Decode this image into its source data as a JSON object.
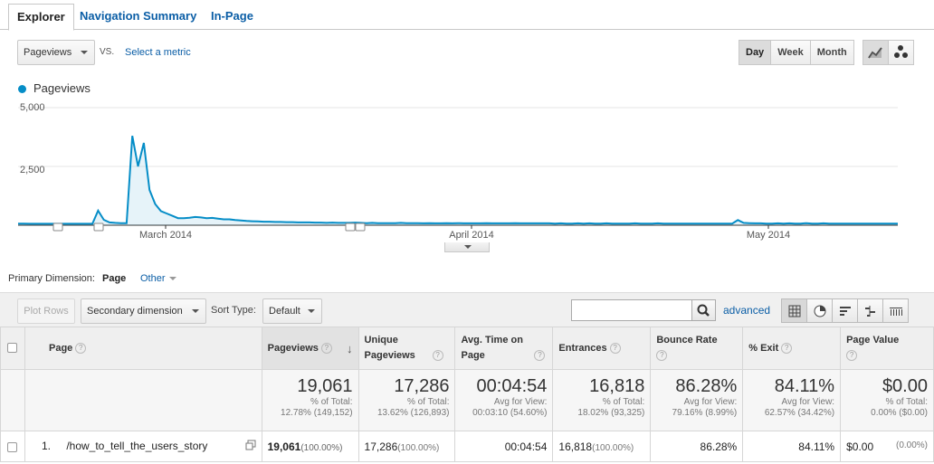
{
  "tabs": [
    {
      "label": "Explorer",
      "active": true
    },
    {
      "label": "Navigation Summary",
      "active": false
    },
    {
      "label": "In-Page",
      "active": false
    }
  ],
  "metric_controls": {
    "metric": "Pageviews",
    "vs_label": "VS.",
    "select_metric": "Select a metric",
    "periods": [
      "Day",
      "Week",
      "Month"
    ],
    "active_period": "Day",
    "chart_modes": [
      "line-chart-icon",
      "motion-chart-icon"
    ]
  },
  "chart_data": {
    "type": "line",
    "series": [
      {
        "name": "Pageviews",
        "color": "#058dc7",
        "values": [
          70,
          70,
          60,
          60,
          60,
          60,
          60,
          60,
          60,
          60,
          60,
          60,
          60,
          60,
          620,
          230,
          120,
          100,
          90,
          90,
          3800,
          2500,
          3500,
          1500,
          900,
          600,
          500,
          400,
          300,
          300,
          320,
          350,
          330,
          300,
          310,
          280,
          250,
          250,
          220,
          200,
          180,
          170,
          160,
          150,
          150,
          140,
          140,
          130,
          130,
          120,
          120,
          120,
          110,
          110,
          100,
          110,
          100,
          100,
          100,
          110,
          100,
          90,
          100,
          90,
          90,
          90,
          90,
          100,
          90,
          90,
          90,
          80,
          90,
          80,
          80,
          90,
          80,
          90,
          80,
          80,
          80,
          80,
          90,
          80,
          80,
          80,
          80,
          90,
          80,
          80,
          80,
          80,
          80,
          80,
          70,
          80,
          70,
          70,
          80,
          70,
          80,
          70,
          70,
          80,
          70,
          70,
          70,
          70,
          80,
          70,
          70,
          70,
          80,
          70,
          70,
          70,
          70,
          70,
          70,
          70,
          70,
          70,
          70,
          70,
          70,
          70,
          220,
          100,
          90,
          80,
          80,
          70,
          70,
          80,
          70,
          80,
          70,
          70,
          90,
          70,
          70,
          80,
          70,
          70,
          70,
          70,
          70,
          70,
          70,
          70,
          70,
          70,
          70,
          70,
          70
        ]
      }
    ],
    "yticks": [
      "5,000",
      "2,500"
    ],
    "ylim": [
      0,
      5000
    ],
    "xticks": [
      "March 2014",
      "April 2014",
      "May 2014"
    ],
    "legend": "top-left",
    "annotations_count": 4
  },
  "primary_dimension": {
    "label": "Primary Dimension:",
    "selected": "Page",
    "other": "Other"
  },
  "toolbar": {
    "plot_rows": "Plot Rows",
    "secondary_dimension": "Secondary dimension",
    "sort_type_label": "Sort Type:",
    "sort_type": "Default",
    "advanced": "advanced"
  },
  "table": {
    "headers": {
      "page": "Page",
      "pageviews": "Pageviews",
      "unique_pageviews": "Unique Pageviews",
      "avg_time": "Avg. Time on Page",
      "entrances": "Entrances",
      "bounce_rate": "Bounce Rate",
      "exit": "% Exit",
      "page_value": "Page Value"
    },
    "totals": {
      "pageviews": {
        "value": "19,061",
        "line1": "% of Total:",
        "line2": "12.78% (149,152)"
      },
      "unique_pageviews": {
        "value": "17,286",
        "line1": "% of Total:",
        "line2": "13.62% (126,893)"
      },
      "avg_time": {
        "value": "00:04:54",
        "line1": "Avg for View:",
        "line2": "00:03:10 (54.60%)"
      },
      "entrances": {
        "value": "16,818",
        "line1": "% of Total:",
        "line2": "18.02% (93,325)"
      },
      "bounce_rate": {
        "value": "86.28%",
        "line1": "Avg for View:",
        "line2": "79.16% (8.99%)"
      },
      "exit": {
        "value": "84.11%",
        "line1": "Avg for View:",
        "line2": "62.57% (34.42%)"
      },
      "page_value": {
        "value": "$0.00",
        "line1": "% of Total:",
        "line2": "0.00% ($0.00)"
      }
    },
    "rows": [
      {
        "index": "1.",
        "page": "/how_to_tell_the_users_story",
        "pageviews": "19,061",
        "pageviews_pct": "(100.00%)",
        "unique_pageviews": "17,286",
        "unique_pct": "(100.00%)",
        "avg_time": "00:04:54",
        "entrances": "16,818",
        "entrances_pct": "(100.00%)",
        "bounce_rate": "86.28%",
        "exit": "84.11%",
        "page_value": "$0.00",
        "page_value_pct": "(0.00%)"
      }
    ]
  }
}
